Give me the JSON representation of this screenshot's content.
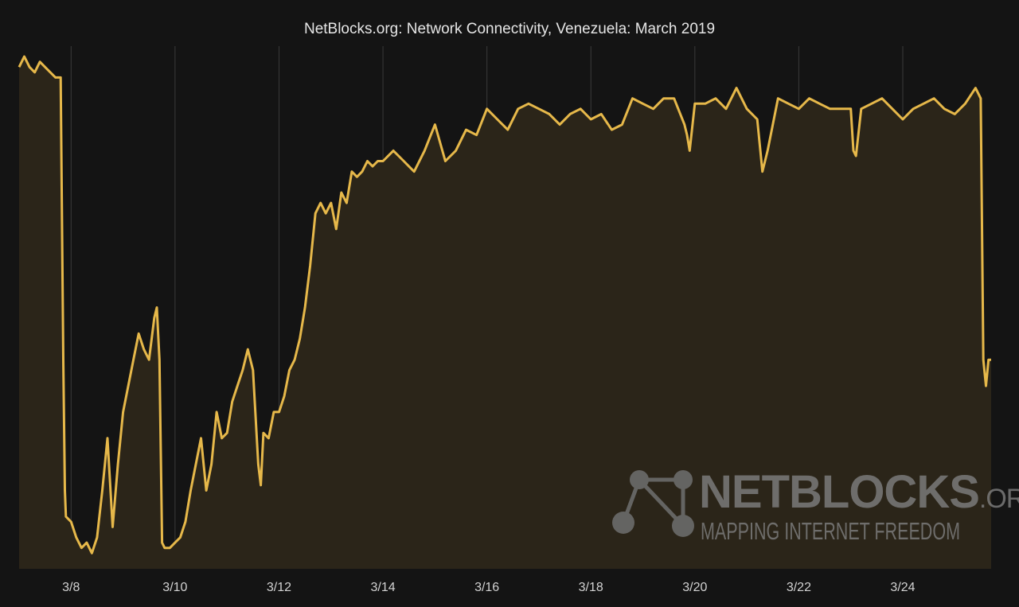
{
  "chart_data": {
    "type": "area",
    "title": "NetBlocks.org: Network Connectivity, Venezuela: March 2019",
    "xlabel": "",
    "ylabel": "",
    "x_ticks": [
      "3/8",
      "3/10",
      "3/12",
      "3/14",
      "3/16",
      "3/18",
      "3/20",
      "3/22",
      "3/24"
    ],
    "x_tick_values": [
      8,
      10,
      12,
      14,
      16,
      18,
      20,
      22,
      24
    ],
    "xlim": [
      7.0,
      25.7
    ],
    "ylim": [
      0,
      100
    ],
    "grid": "vertical",
    "series": [
      {
        "color": "#e6b84a",
        "fill": "#2b2519",
        "x": [
          7.0,
          7.1,
          7.2,
          7.3,
          7.4,
          7.5,
          7.6,
          7.7,
          7.8,
          7.85,
          7.88,
          7.9,
          8.0,
          8.1,
          8.2,
          8.3,
          8.4,
          8.5,
          8.6,
          8.7,
          8.8,
          8.9,
          9.0,
          9.1,
          9.2,
          9.3,
          9.4,
          9.5,
          9.6,
          9.65,
          9.7,
          9.75,
          9.8,
          9.9,
          10.0,
          10.1,
          10.2,
          10.3,
          10.4,
          10.5,
          10.6,
          10.7,
          10.8,
          10.9,
          11.0,
          11.1,
          11.2,
          11.3,
          11.4,
          11.5,
          11.6,
          11.65,
          11.7,
          11.8,
          11.9,
          12.0,
          12.1,
          12.2,
          12.3,
          12.4,
          12.5,
          12.6,
          12.7,
          12.8,
          12.9,
          13.0,
          13.1,
          13.2,
          13.3,
          13.4,
          13.5,
          13.6,
          13.7,
          13.8,
          13.9,
          14.0,
          14.2,
          14.4,
          14.6,
          14.8,
          15.0,
          15.2,
          15.4,
          15.6,
          15.8,
          16.0,
          16.2,
          16.4,
          16.6,
          16.8,
          17.0,
          17.2,
          17.4,
          17.6,
          17.8,
          18.0,
          18.2,
          18.4,
          18.6,
          18.8,
          19.0,
          19.2,
          19.4,
          19.6,
          19.8,
          19.85,
          19.9,
          20.0,
          20.2,
          20.4,
          20.6,
          20.8,
          21.0,
          21.2,
          21.3,
          21.4,
          21.6,
          21.8,
          22.0,
          22.2,
          22.4,
          22.6,
          22.8,
          23.0,
          23.05,
          23.1,
          23.2,
          23.4,
          23.6,
          23.8,
          24.0,
          24.2,
          24.4,
          24.6,
          24.8,
          25.0,
          25.2,
          25.4,
          25.5,
          25.55,
          25.6,
          25.65,
          25.7
        ],
        "y": [
          96,
          98,
          96,
          95,
          97,
          96,
          95,
          94,
          94,
          40,
          15,
          10,
          9,
          6,
          4,
          5,
          3,
          6,
          15,
          25,
          8,
          20,
          30,
          35,
          40,
          45,
          42,
          40,
          48,
          50,
          40,
          5,
          4,
          4,
          5,
          6,
          9,
          15,
          20,
          25,
          15,
          20,
          30,
          25,
          26,
          32,
          35,
          38,
          42,
          38,
          20,
          16,
          26,
          25,
          30,
          30,
          33,
          38,
          40,
          44,
          50,
          58,
          68,
          70,
          68,
          70,
          65,
          72,
          70,
          76,
          75,
          76,
          78,
          77,
          78,
          78,
          80,
          78,
          76,
          80,
          85,
          78,
          80,
          84,
          83,
          88,
          86,
          84,
          88,
          89,
          88,
          87,
          85,
          87,
          88,
          86,
          87,
          84,
          85,
          90,
          89,
          88,
          90,
          90,
          85,
          83,
          80,
          89,
          89,
          90,
          88,
          92,
          88,
          86,
          76,
          80,
          90,
          89,
          88,
          90,
          89,
          88,
          88,
          88,
          80,
          79,
          88,
          89,
          90,
          88,
          86,
          88,
          89,
          90,
          88,
          87,
          89,
          92,
          90,
          40,
          35,
          40,
          40
        ]
      }
    ]
  },
  "watermark": {
    "brand_main": "NETBLOCKS",
    "brand_suffix": ".ORG",
    "tagline": "MAPPING INTERNET FREEDOM"
  }
}
